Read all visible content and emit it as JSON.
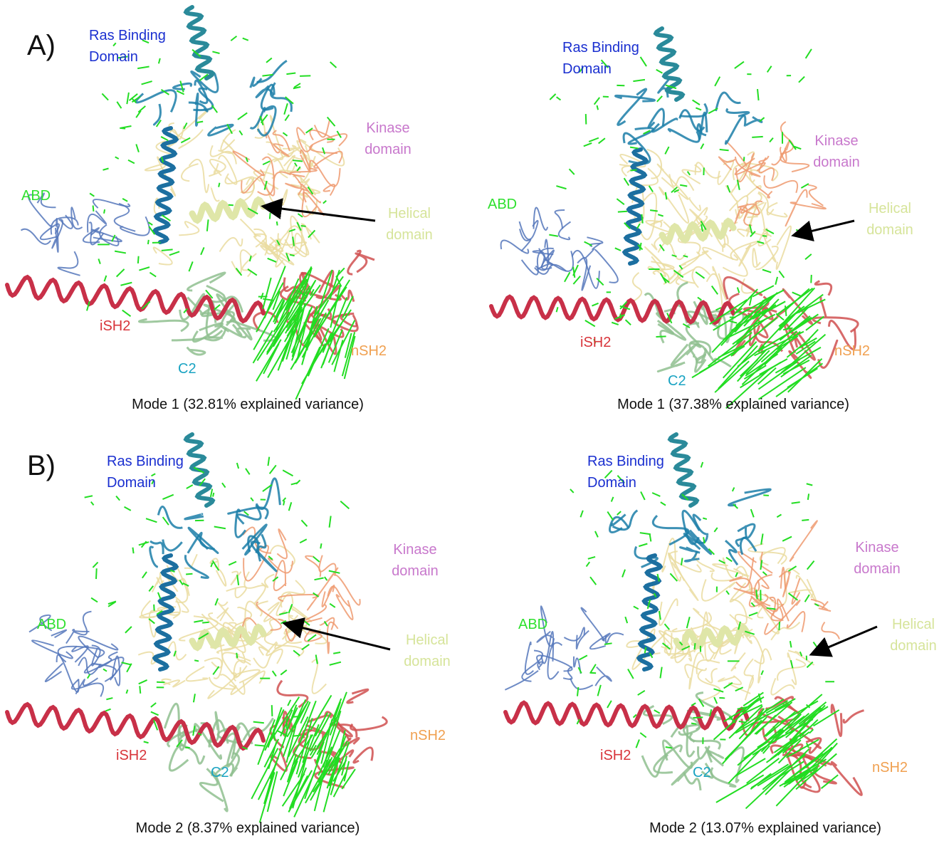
{
  "rows": [
    {
      "label": "A)",
      "panels": [
        {
          "labels": [
            "Ras Binding Domain",
            "Kinase domain",
            "ABD",
            "Helical domain",
            "iSH2",
            "C2",
            "nSH2"
          ],
          "caption": "Mode 1 (32.81% explained variance)"
        },
        {
          "labels": [
            "Ras Binding Domain",
            "Kinase domain",
            "ABD",
            "Helical domain",
            "iSH2",
            "C2",
            "nSH2"
          ],
          "caption": "Mode 1 (37.38% explained variance)"
        }
      ]
    },
    {
      "label": "B)",
      "panels": [
        {
          "labels": [
            "Ras Binding Domain",
            "Kinase domain",
            "ABD",
            "Helical domain",
            "iSH2",
            "C2",
            "nSH2"
          ],
          "caption": "Mode 2 (8.37% explained variance)"
        },
        {
          "labels": [
            "Ras Binding Domain",
            "Kinase domain",
            "ABD",
            "Helical domain",
            "iSH2",
            "C2",
            "nSH2"
          ],
          "caption": "Mode 2 (13.07% explained variance)"
        }
      ]
    }
  ]
}
